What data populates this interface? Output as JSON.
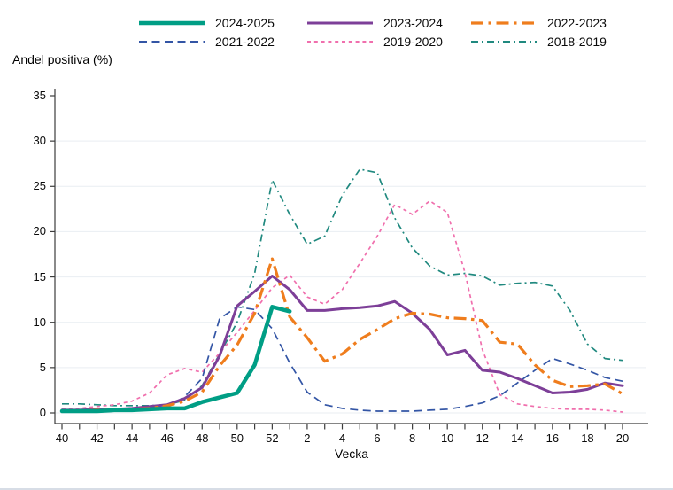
{
  "chart_data": {
    "type": "line",
    "ylabel": "Andel positiva (%)",
    "xlabel": "Vecka",
    "ylim": [
      0,
      35
    ],
    "ytick_step": 5,
    "grid": "horizontal",
    "weeks": [
      "40",
      "41",
      "42",
      "43",
      "44",
      "45",
      "46",
      "47",
      "48",
      "49",
      "50",
      "51",
      "52",
      "1",
      "2",
      "3",
      "4",
      "5",
      "6",
      "7",
      "8",
      "9",
      "10",
      "11",
      "12",
      "13",
      "14",
      "15",
      "16",
      "17",
      "18",
      "19",
      "20"
    ],
    "labeled_week_ticks": [
      "40",
      "42",
      "44",
      "46",
      "48",
      "50",
      "52",
      "2",
      "4",
      "6",
      "8",
      "10",
      "12",
      "14",
      "16",
      "18",
      "20"
    ],
    "y_ticklabels": [
      "0",
      "5",
      "10",
      "15",
      "20",
      "25",
      "30",
      "35"
    ],
    "axis_color": "#3c3c3c",
    "grid_color": "#e9eef2",
    "draw_order": [
      5,
      4,
      3,
      1,
      2,
      0
    ],
    "series": [
      {
        "name": "2024-2025",
        "color": "#009e85",
        "width": 4.5,
        "dash": "solid",
        "values": [
          0.2,
          0.2,
          0.2,
          0.3,
          0.3,
          0.4,
          0.5,
          0.5,
          1.2,
          1.7,
          2.2,
          5.3,
          11.7,
          11.2,
          null,
          null,
          null,
          null,
          null,
          null,
          null,
          null,
          null,
          null,
          null,
          null,
          null,
          null,
          null,
          null,
          null,
          null,
          null
        ]
      },
      {
        "name": "2023-2024",
        "color": "#7d3f98",
        "width": 3,
        "dash": "solid",
        "values": [
          0.3,
          0.3,
          0.4,
          0.4,
          0.5,
          0.7,
          0.9,
          1.6,
          2.8,
          6.3,
          11.8,
          13.4,
          15.1,
          13.6,
          11.3,
          11.3,
          11.5,
          11.6,
          11.8,
          12.3,
          11.0,
          9.2,
          6.4,
          6.9,
          4.7,
          4.5,
          3.8,
          3.0,
          2.2,
          2.3,
          2.6,
          3.3,
          3.0
        ]
      },
      {
        "name": "2022-2023",
        "color": "#ef7d1d",
        "width": 3.2,
        "dash": "longdashdot",
        "values": [
          0.2,
          0.2,
          0.3,
          0.3,
          0.4,
          0.5,
          0.8,
          1.3,
          2.3,
          5.2,
          7.5,
          11.0,
          17.0,
          10.6,
          8.3,
          5.7,
          6.5,
          8.1,
          9.2,
          10.4,
          11.0,
          10.9,
          10.5,
          10.4,
          10.2,
          7.8,
          7.6,
          5.3,
          3.6,
          2.9,
          3.0,
          3.2,
          2.1
        ]
      },
      {
        "name": "2021-2022",
        "color": "#3355a5",
        "width": 1.7,
        "dash": "dash",
        "values": [
          0.1,
          0.1,
          0.2,
          0.2,
          0.2,
          0.3,
          0.6,
          1.8,
          3.8,
          10.4,
          11.7,
          11.4,
          9.3,
          5.5,
          2.3,
          0.9,
          0.5,
          0.3,
          0.2,
          0.2,
          0.2,
          0.3,
          0.4,
          0.7,
          1.1,
          1.9,
          3.3,
          4.7,
          6.0,
          5.4,
          4.7,
          3.9,
          3.5
        ]
      },
      {
        "name": "2019-2020",
        "color": "#f06fad",
        "width": 1.7,
        "dash": "dot",
        "values": [
          0.4,
          0.5,
          0.7,
          0.9,
          1.3,
          2.2,
          4.2,
          4.9,
          4.5,
          6.6,
          8.9,
          11.3,
          13.8,
          15.2,
          12.8,
          12.0,
          13.6,
          16.5,
          19.5,
          23.0,
          21.9,
          23.4,
          22.1,
          15.5,
          7.0,
          2.0,
          1.0,
          0.7,
          0.5,
          0.4,
          0.4,
          0.3,
          0.1
        ]
      },
      {
        "name": "2018-2019",
        "color": "#20897f",
        "width": 1.7,
        "dash": "dashdot",
        "values": [
          1.0,
          1.0,
          0.9,
          0.8,
          0.8,
          0.8,
          0.9,
          1.4,
          3.0,
          6.5,
          10.0,
          15.4,
          25.7,
          21.9,
          18.6,
          19.5,
          24.0,
          26.9,
          26.5,
          21.5,
          18.2,
          16.2,
          15.2,
          15.4,
          15.1,
          14.1,
          14.3,
          14.4,
          14.0,
          11.3,
          7.6,
          6.0,
          5.8
        ]
      }
    ]
  }
}
